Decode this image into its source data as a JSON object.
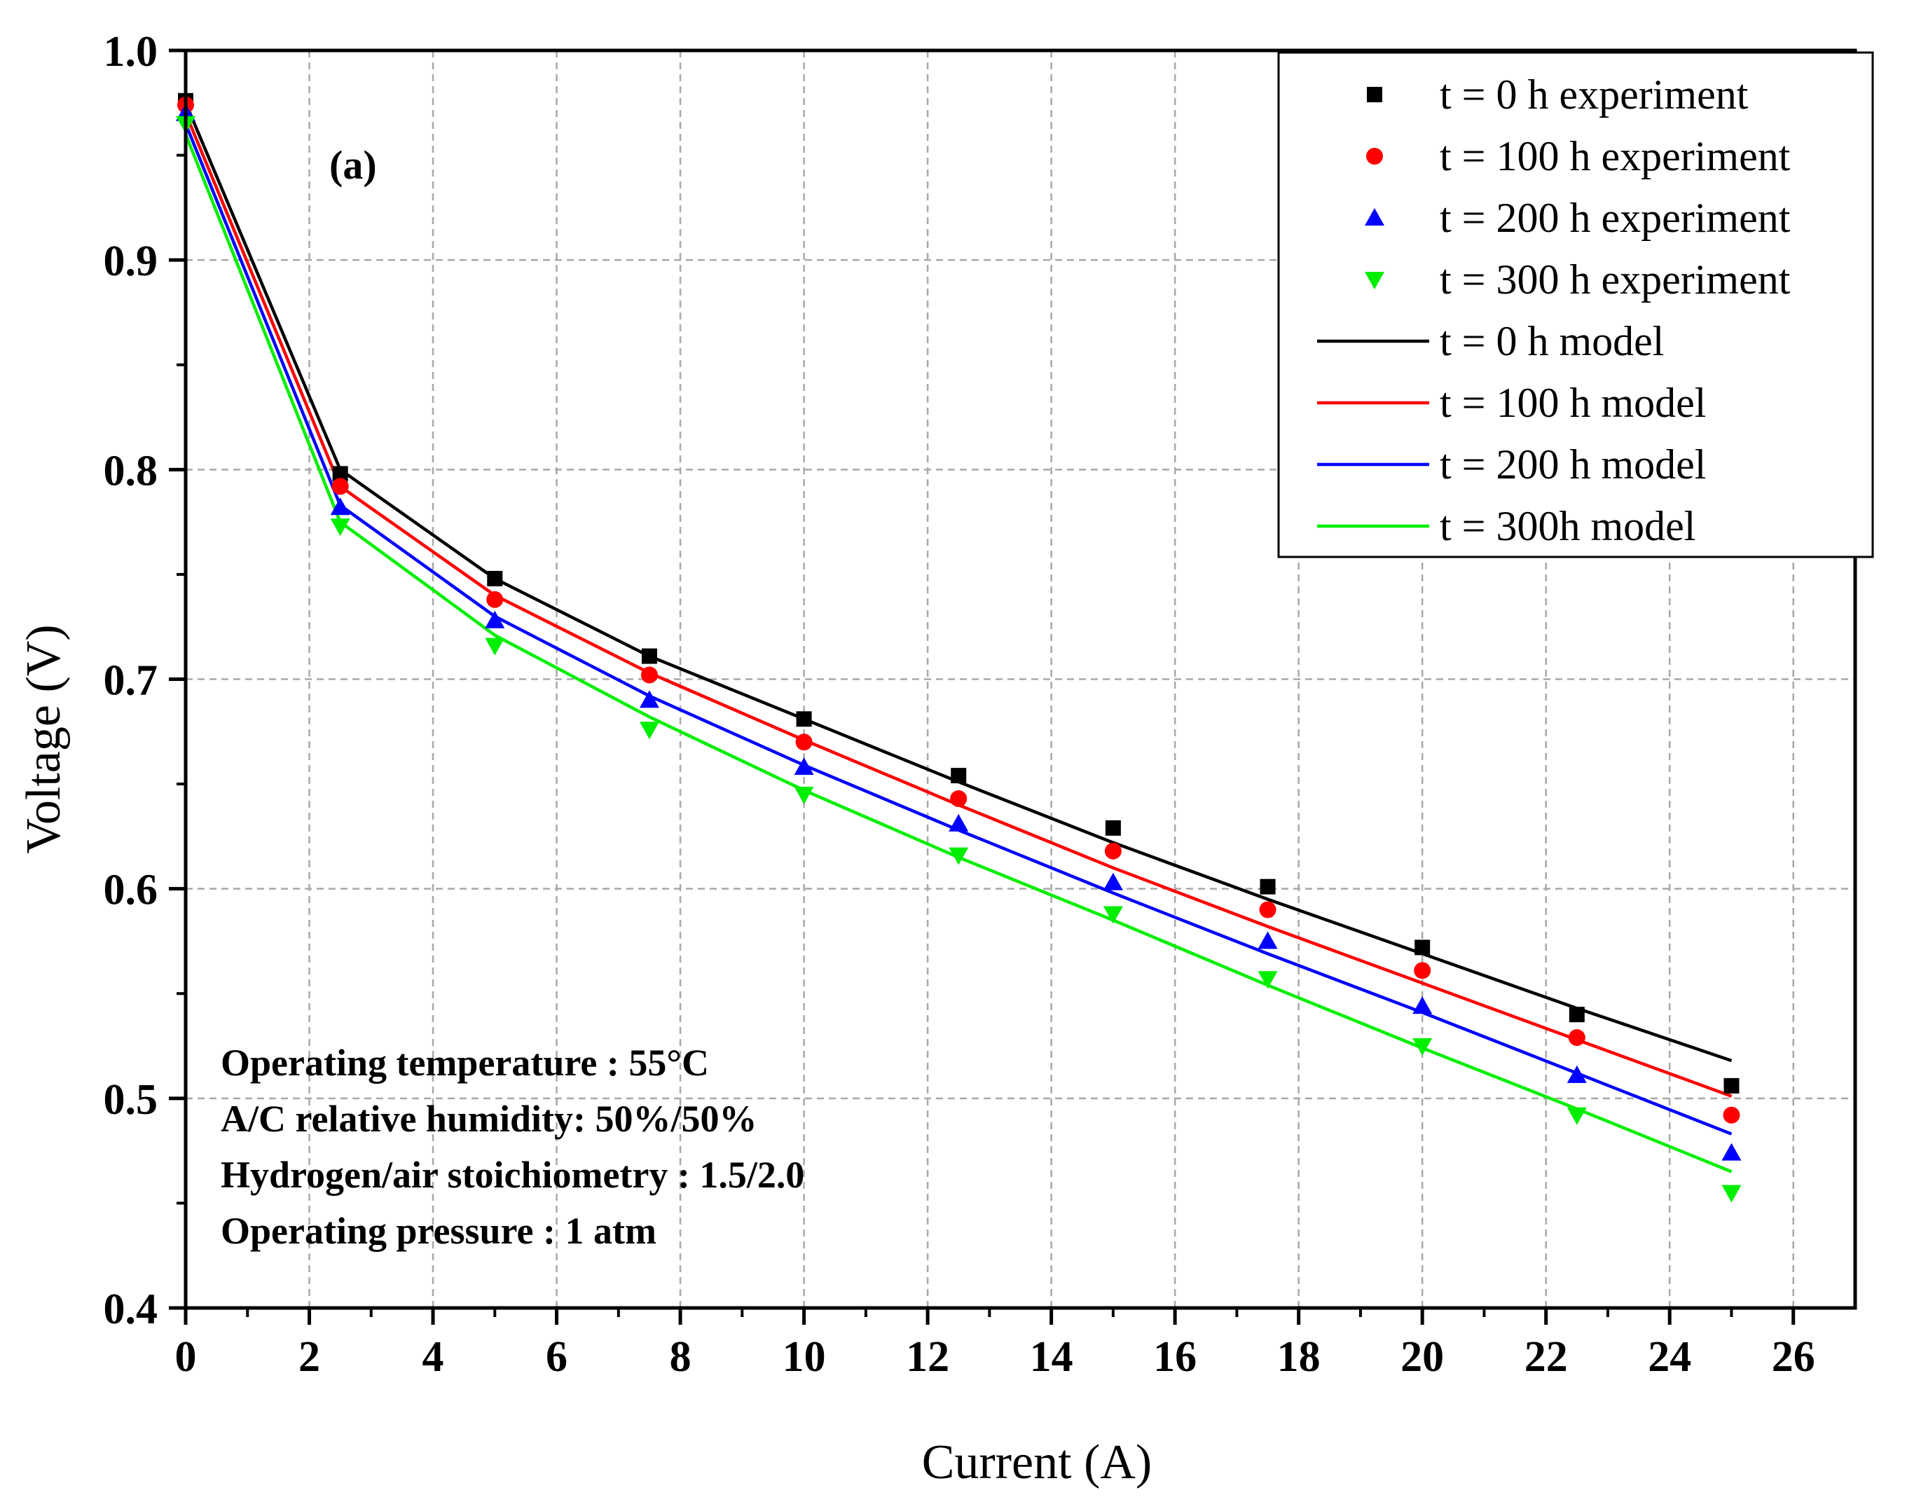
{
  "chart_data": {
    "type": "line",
    "panel_label": "(a)",
    "xlabel": "Current (A)",
    "ylabel": "Voltage (V)",
    "xlim": [
      0,
      27
    ],
    "ylim": [
      0.4,
      1.0
    ],
    "xticks": [
      0,
      2,
      4,
      6,
      8,
      10,
      12,
      14,
      16,
      18,
      20,
      22,
      24,
      26
    ],
    "xtick_labels": [
      "0",
      "2",
      "4",
      "6",
      "8",
      "10",
      "12",
      "14",
      "16",
      "18",
      "20",
      "22",
      "24",
      "26"
    ],
    "yticks": [
      0.4,
      0.5,
      0.6,
      0.7,
      0.8,
      0.9,
      1.0
    ],
    "ytick_labels": [
      "0.4",
      "0.5",
      "0.6",
      "0.7",
      "0.8",
      "0.9",
      "1.0"
    ],
    "grid": true,
    "legend_position": "top-right",
    "annotations": [
      "Operating temperature : 55°C",
      "A/C relative humidity: 50%/50%",
      "Hydrogen/air stoichiometry : 1.5/2.0",
      "Operating pressure : 1 atm"
    ],
    "x": [
      0,
      2.5,
      5,
      7.5,
      10,
      12.5,
      15,
      17.5,
      20,
      22.5,
      25
    ],
    "series": [
      {
        "name": "t = 0 h experiment",
        "kind": "scatter",
        "marker": "square",
        "color": "#000000",
        "values": [
          0.976,
          0.798,
          0.748,
          0.711,
          0.681,
          0.654,
          0.629,
          0.601,
          0.572,
          0.54,
          0.506
        ]
      },
      {
        "name": "t = 100 h experiment",
        "kind": "scatter",
        "marker": "circle",
        "color": "#ff0000",
        "values": [
          0.974,
          0.792,
          0.738,
          0.702,
          0.67,
          0.643,
          0.618,
          0.59,
          0.561,
          0.529,
          0.492
        ]
      },
      {
        "name": "t = 200 h experiment",
        "kind": "scatter",
        "marker": "triangle-up",
        "color": "#0000ff",
        "values": [
          0.97,
          0.782,
          0.728,
          0.69,
          0.658,
          0.631,
          0.603,
          0.575,
          0.544,
          0.511,
          0.474
        ]
      },
      {
        "name": "t = 300 h experiment",
        "kind": "scatter",
        "marker": "triangle-down",
        "color": "#00ee00",
        "values": [
          0.965,
          0.773,
          0.716,
          0.676,
          0.645,
          0.616,
          0.588,
          0.557,
          0.525,
          0.492,
          0.455
        ]
      },
      {
        "name": "t = 0 h model",
        "kind": "line",
        "color": "#000000",
        "values": [
          0.975,
          0.8,
          0.748,
          0.711,
          0.681,
          0.651,
          0.622,
          0.595,
          0.569,
          0.543,
          0.518
        ]
      },
      {
        "name": "t = 100 h model",
        "kind": "line",
        "color": "#ff0000",
        "values": [
          0.97,
          0.792,
          0.74,
          0.703,
          0.671,
          0.64,
          0.61,
          0.582,
          0.555,
          0.528,
          0.501
        ]
      },
      {
        "name": "t = 200 h model",
        "kind": "line",
        "color": "#0000ff",
        "values": [
          0.965,
          0.783,
          0.73,
          0.692,
          0.659,
          0.628,
          0.598,
          0.569,
          0.541,
          0.512,
          0.483
        ]
      },
      {
        "name": "t = 300h model",
        "kind": "line",
        "color": "#00ee00",
        "values": [
          0.96,
          0.775,
          0.721,
          0.682,
          0.647,
          0.615,
          0.585,
          0.554,
          0.524,
          0.495,
          0.465
        ]
      }
    ]
  }
}
